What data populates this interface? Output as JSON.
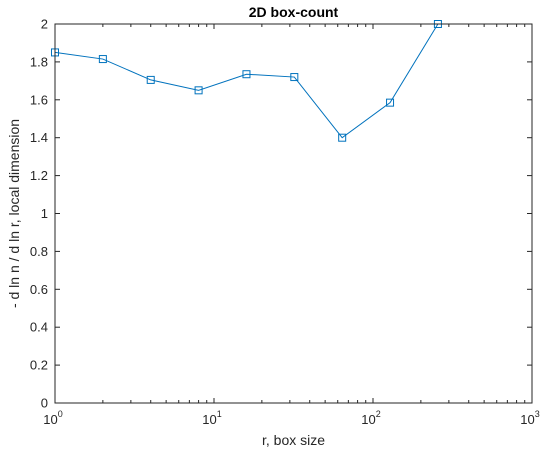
{
  "chart_data": {
    "type": "line",
    "title": "2D box-count",
    "xlabel": "r, box size",
    "ylabel": "- d ln n / d ln r, local dimension",
    "xscale": "log",
    "xlim": [
      1,
      1000
    ],
    "ylim": [
      0,
      2
    ],
    "grid": false,
    "legend": "none",
    "x_ticks": [
      {
        "base": "10",
        "exp": "0",
        "value": 1
      },
      {
        "base": "10",
        "exp": "1",
        "value": 10
      },
      {
        "base": "10",
        "exp": "2",
        "value": 100
      },
      {
        "base": "10",
        "exp": "3",
        "value": 1000
      }
    ],
    "y_ticks": [
      "0",
      "0.2",
      "0.4",
      "0.6",
      "0.8",
      "1",
      "1.2",
      "1.4",
      "1.6",
      "1.8",
      "2"
    ],
    "series": [
      {
        "marker": "square",
        "color": "#0072BD",
        "x": [
          1,
          2,
          4,
          8,
          16,
          32,
          64,
          128,
          256
        ],
        "y": [
          1.85,
          1.815,
          1.705,
          1.65,
          1.735,
          1.72,
          1.4,
          1.585,
          2.0
        ]
      }
    ]
  }
}
